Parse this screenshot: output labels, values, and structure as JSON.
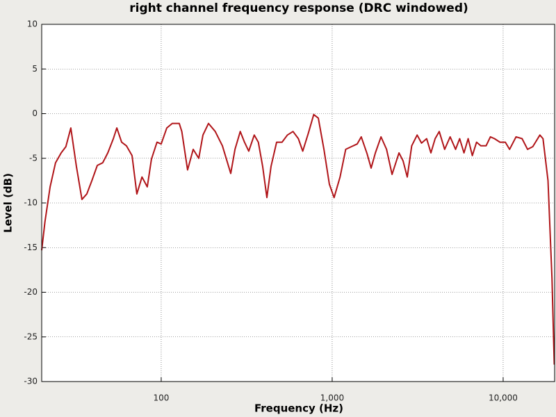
{
  "chart_data": {
    "type": "line",
    "title": "right channel frequency response (DRC windowed)",
    "x_label": "Frequency (Hz)",
    "y_label": "Level (dB)",
    "log_x": true,
    "grid": true,
    "xlim": [
      20,
      20000
    ],
    "ylim": [
      -30,
      10
    ],
    "xticks": [
      100,
      {
        "value": 1000,
        "label": "1,000"
      },
      {
        "value": 10000,
        "label": "10,000"
      }
    ],
    "yticks": [
      -30,
      -25,
      -20,
      -15,
      -10,
      -5,
      0,
      5,
      10
    ],
    "x": [
      20,
      20.9,
      22.4,
      24.1,
      26.0,
      27.7,
      29.6,
      31.9,
      34.4,
      36.7,
      39.3,
      42.3,
      45.5,
      48.7,
      52.5,
      55.0,
      58.7,
      62.6,
      67.5,
      72.0,
      77.2,
      82.9,
      87.7,
      94.5,
      100,
      107.8,
      116,
      127.5,
      132,
      142.7,
      153.9,
      165.8,
      175.5,
      189,
      207,
      228,
      255,
      270,
      290,
      307,
      325,
      350,
      370,
      392,
      415,
      439,
      473,
      509,
      547,
      590,
      634,
      673,
      725,
      780,
      830,
      895,
      963,
      1026,
      1112,
      1200,
      1296,
      1400,
      1480,
      1600,
      1690,
      1790,
      1930,
      2080,
      2240,
      2460,
      2600,
      2750,
      2920,
      3140,
      3330,
      3570,
      3780,
      4000,
      4230,
      4550,
      4900,
      5270,
      5570,
      5900,
      6240,
      6600,
      6990,
      7400,
      7950,
      8420,
      8900,
      9580,
      10300,
      10900,
      11900,
      12900,
      13900,
      14900,
      16400,
      17100,
      18300,
      19300,
      19900
    ],
    "series": [
      {
        "name": "right channel",
        "color": "#b01418",
        "values": [
          -15.3,
          -12.1,
          -8.2,
          -5.5,
          -4.4,
          -3.7,
          -1.6,
          -5.9,
          -9.6,
          -9.0,
          -7.5,
          -5.8,
          -5.5,
          -4.4,
          -2.8,
          -1.6,
          -3.2,
          -3.6,
          -4.7,
          -9.0,
          -7.1,
          -8.2,
          -5.1,
          -3.2,
          -3.4,
          -1.6,
          -1.1,
          -1.1,
          -2.0,
          -6.3,
          -4.0,
          -5.0,
          -2.4,
          -1.1,
          -2.0,
          -3.6,
          -6.7,
          -4.0,
          -2.0,
          -3.2,
          -4.2,
          -2.4,
          -3.2,
          -5.9,
          -9.4,
          -5.9,
          -3.2,
          -3.2,
          -2.4,
          -2.0,
          -2.8,
          -4.2,
          -2.2,
          -0.1,
          -0.5,
          -4.0,
          -7.9,
          -9.4,
          -7.1,
          -4.0,
          -3.7,
          -3.4,
          -2.6,
          -4.5,
          -6.1,
          -4.4,
          -2.6,
          -4.0,
          -6.8,
          -4.4,
          -5.3,
          -7.1,
          -3.6,
          -2.4,
          -3.3,
          -2.8,
          -4.4,
          -2.8,
          -2.0,
          -4.0,
          -2.6,
          -4.0,
          -2.8,
          -4.4,
          -2.8,
          -4.7,
          -3.2,
          -3.6,
          -3.6,
          -2.6,
          -2.8,
          -3.2,
          -3.2,
          -4.0,
          -2.6,
          -2.8,
          -4.0,
          -3.7,
          -2.4,
          -2.8,
          -7.5,
          -18.4,
          -28.1
        ]
      }
    ]
  }
}
